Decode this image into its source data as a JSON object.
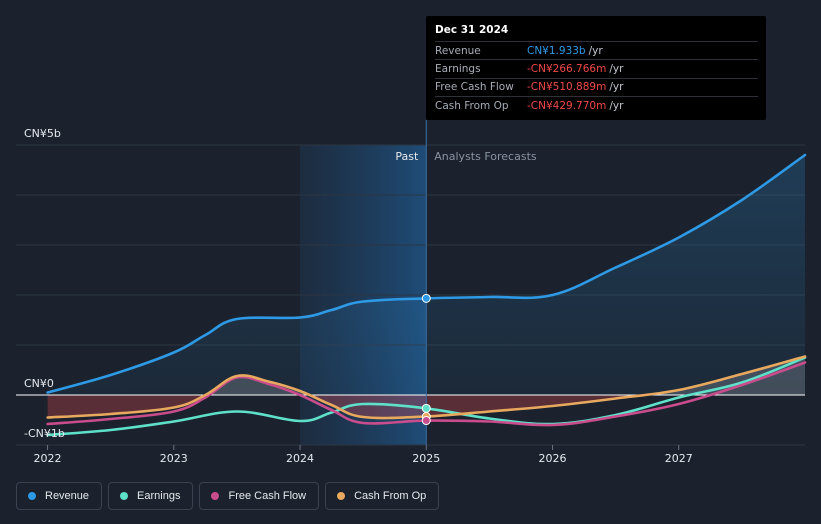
{
  "colors": {
    "revenue": "#2e9ae6",
    "earnings": "#5ee0c9",
    "free_cash_flow": "#c94c8c",
    "cash_from_op": "#e8a95f",
    "negative": "#f04848",
    "background": "#1b222d"
  },
  "tooltip": {
    "date": "Dec 31 2024",
    "rows": [
      {
        "name": "Revenue",
        "value": "CN¥1.933b",
        "unit": "/yr"
      },
      {
        "name": "Earnings",
        "value": "-CN¥266.766m",
        "unit": "/yr"
      },
      {
        "name": "Free Cash Flow",
        "value": "-CN¥510.889m",
        "unit": "/yr"
      },
      {
        "name": "Cash From Op",
        "value": "-CN¥429.770m",
        "unit": "/yr"
      }
    ]
  },
  "legend": {
    "items": [
      {
        "label": "Revenue",
        "icon": "revenue-dot-icon"
      },
      {
        "label": "Earnings",
        "icon": "earnings-dot-icon"
      },
      {
        "label": "Free Cash Flow",
        "icon": "free-cash-flow-dot-icon"
      },
      {
        "label": "Cash From Op",
        "icon": "cash-from-op-dot-icon"
      }
    ]
  },
  "chart_data": {
    "type": "line",
    "title": "",
    "xlabel": "",
    "ylabel": "",
    "past_label": "Past",
    "forecast_label": "Analysts Forecasts",
    "y_axis_labels": [
      "CN¥5b",
      "CN¥0",
      "-CN¥1b"
    ],
    "x_ticks": [
      "2022",
      "2023",
      "2024",
      "2025",
      "2026",
      "2027"
    ],
    "x_tick_values": [
      2022,
      2023,
      2024,
      2025,
      2026,
      2027
    ],
    "xlim": [
      2021.75,
      2028.0
    ],
    "ylim": [
      -1.0,
      5.0
    ],
    "units": "CN¥ billions",
    "gridlines": [
      5,
      4,
      3,
      2,
      1,
      0,
      -1
    ],
    "past_shade_start": 2024.0,
    "divider": 2025.0,
    "series": [
      {
        "name": "Revenue",
        "x": [
          2022.0,
          2022.5,
          2023.0,
          2023.25,
          2023.5,
          2024.0,
          2024.25,
          2024.5,
          2025.0,
          2025.5,
          2026.0,
          2026.5,
          2027.0,
          2027.5,
          2028.0
        ],
        "values": [
          0.05,
          0.4,
          0.85,
          1.2,
          1.52,
          1.55,
          1.7,
          1.87,
          1.933,
          1.96,
          2.0,
          2.55,
          3.15,
          3.9,
          4.8
        ]
      },
      {
        "name": "Earnings",
        "x": [
          2022.0,
          2022.5,
          2023.0,
          2023.5,
          2024.0,
          2024.25,
          2024.5,
          2025.0,
          2025.5,
          2026.0,
          2026.5,
          2027.0,
          2027.5,
          2028.0
        ],
        "values": [
          -0.8,
          -0.7,
          -0.53,
          -0.33,
          -0.52,
          -0.35,
          -0.18,
          -0.267,
          -0.47,
          -0.58,
          -0.4,
          -0.05,
          0.25,
          0.75
        ]
      },
      {
        "name": "Free Cash Flow",
        "x": [
          2022.0,
          2022.5,
          2023.0,
          2023.25,
          2023.5,
          2023.75,
          2024.0,
          2024.25,
          2024.5,
          2025.0,
          2025.5,
          2026.0,
          2026.5,
          2027.0,
          2027.5,
          2028.0
        ],
        "values": [
          -0.58,
          -0.48,
          -0.33,
          -0.05,
          0.35,
          0.22,
          0.0,
          -0.3,
          -0.56,
          -0.511,
          -0.53,
          -0.6,
          -0.43,
          -0.18,
          0.2,
          0.65
        ]
      },
      {
        "name": "Cash From Op",
        "x": [
          2022.0,
          2022.5,
          2023.0,
          2023.25,
          2023.5,
          2023.75,
          2024.0,
          2024.25,
          2024.5,
          2025.0,
          2025.5,
          2026.0,
          2026.5,
          2027.0,
          2027.5,
          2028.0
        ],
        "values": [
          -0.45,
          -0.38,
          -0.25,
          0.0,
          0.38,
          0.27,
          0.08,
          -0.2,
          -0.44,
          -0.43,
          -0.33,
          -0.22,
          -0.07,
          0.1,
          0.42,
          0.77
        ]
      }
    ],
    "tooltip_point_x": 2025.0
  }
}
